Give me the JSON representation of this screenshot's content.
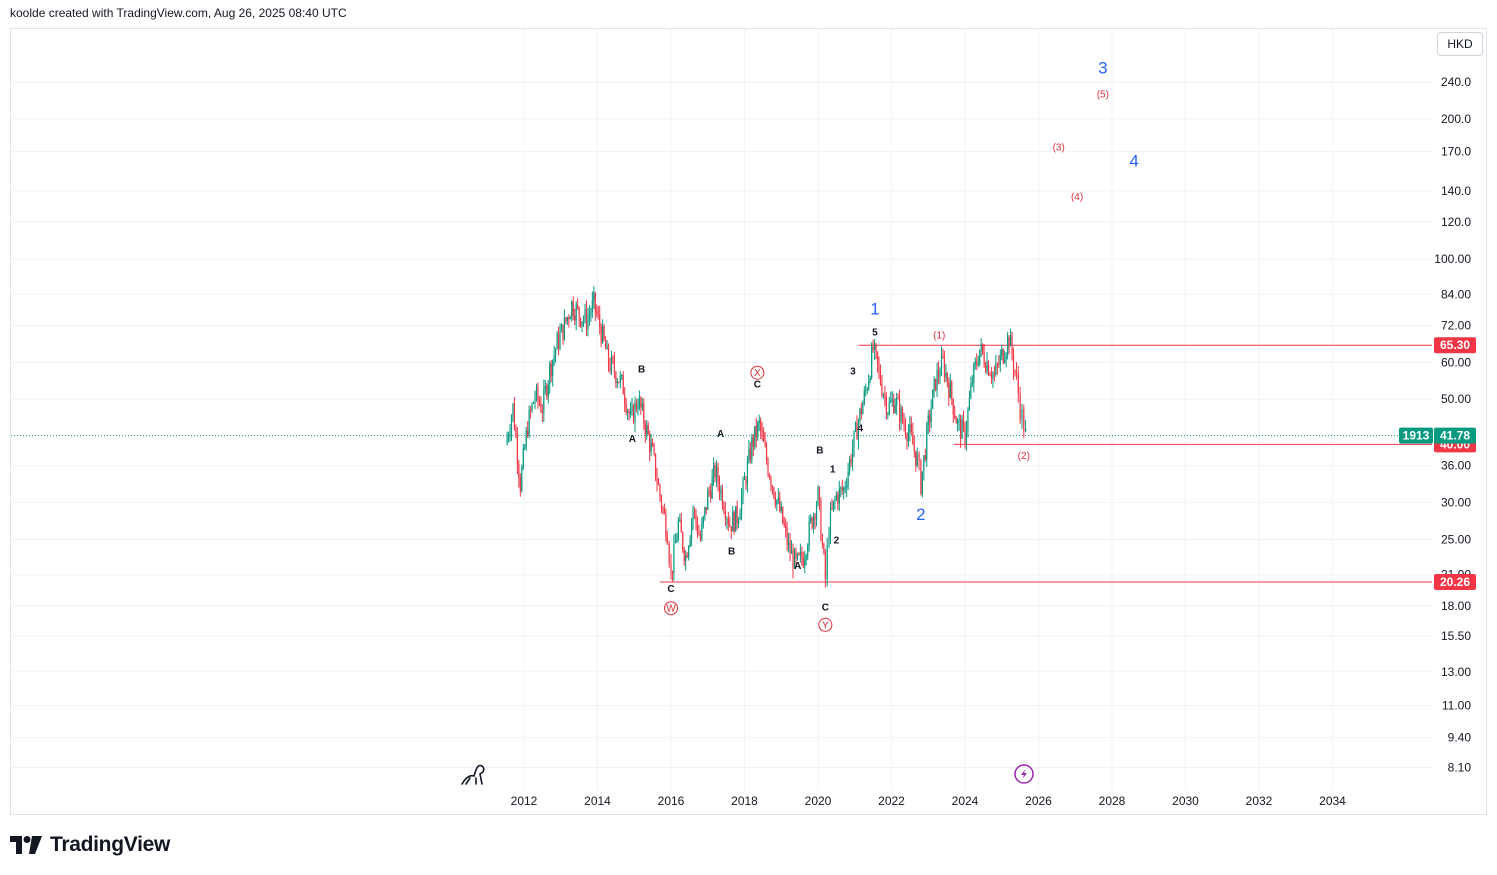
{
  "header": {
    "credit": "koolde created with TradingView.com, Aug 26, 2025 08:40 UTC"
  },
  "currency_label": "HKD",
  "brand": {
    "name": "TradingView"
  },
  "icons": {
    "dino": "dinosaur-icon",
    "flash": "lightning-icon",
    "logo": "tradingview-logo-icon"
  },
  "colors": {
    "up": "#089981",
    "down": "#f23645",
    "level": "#f23645",
    "blue_wave": "#2962ff",
    "price_tag": "#089981"
  },
  "chart_data": {
    "type": "candlestick",
    "scale": "log",
    "x_ticks": [
      "2012",
      "2014",
      "2016",
      "2018",
      "2020",
      "2022",
      "2024",
      "2026",
      "2028",
      "2030",
      "2032",
      "2034"
    ],
    "y_ticks": [
      "240.0",
      "200.0",
      "170.0",
      "140.0",
      "120.0",
      "100.00",
      "84.00",
      "72.00",
      "60.00",
      "50.00",
      "36.00",
      "30.00",
      "25.00",
      "21.00",
      "18.00",
      "15.50",
      "13.00",
      "11.00",
      "9.40",
      "8.10"
    ],
    "ylim": [
      7.5,
      290
    ],
    "horizontal_levels": [
      {
        "value": 65.3,
        "label": "65.30",
        "from_x": 2021.1
      },
      {
        "value": 40.0,
        "label": "40.00",
        "from_x": 2023.7
      },
      {
        "value": 20.26,
        "label": "20.26",
        "from_x": 2015.7
      }
    ],
    "last_price": {
      "value": 41.78,
      "label": "41.78",
      "countdown": "1913"
    },
    "price_path": [
      [
        2011.5,
        40
      ],
      [
        2011.7,
        48
      ],
      [
        2011.9,
        33
      ],
      [
        2012.1,
        44
      ],
      [
        2012.3,
        51
      ],
      [
        2012.5,
        48
      ],
      [
        2012.7,
        58
      ],
      [
        2012.9,
        66
      ],
      [
        2013.1,
        72
      ],
      [
        2013.3,
        80
      ],
      [
        2013.5,
        76
      ],
      [
        2013.7,
        74
      ],
      [
        2013.9,
        80
      ],
      [
        2014.1,
        70
      ],
      [
        2014.3,
        60
      ],
      [
        2014.5,
        57
      ],
      [
        2014.7,
        53
      ],
      [
        2014.9,
        45
      ],
      [
        2015.1,
        50
      ],
      [
        2015.3,
        44
      ],
      [
        2015.5,
        38
      ],
      [
        2015.7,
        31
      ],
      [
        2015.9,
        26
      ],
      [
        2016.0,
        21
      ],
      [
        2016.2,
        27
      ],
      [
        2016.4,
        23
      ],
      [
        2016.6,
        29
      ],
      [
        2016.8,
        25
      ],
      [
        2017.0,
        31
      ],
      [
        2017.2,
        35
      ],
      [
        2017.4,
        31
      ],
      [
        2017.6,
        27
      ],
      [
        2017.8,
        28
      ],
      [
        2018.0,
        33
      ],
      [
        2018.2,
        40
      ],
      [
        2018.4,
        44
      ],
      [
        2018.6,
        37
      ],
      [
        2018.8,
        32
      ],
      [
        2019.0,
        28
      ],
      [
        2019.2,
        24
      ],
      [
        2019.4,
        22
      ],
      [
        2019.6,
        23
      ],
      [
        2019.8,
        27
      ],
      [
        2020.0,
        31
      ],
      [
        2020.2,
        20.5
      ],
      [
        2020.3,
        27
      ],
      [
        2020.5,
        31
      ],
      [
        2020.7,
        32
      ],
      [
        2020.9,
        38
      ],
      [
        2021.1,
        45
      ],
      [
        2021.3,
        52
      ],
      [
        2021.5,
        64
      ],
      [
        2021.7,
        55
      ],
      [
        2021.9,
        48
      ],
      [
        2022.1,
        50
      ],
      [
        2022.3,
        45
      ],
      [
        2022.5,
        42
      ],
      [
        2022.7,
        37
      ],
      [
        2022.8,
        33
      ],
      [
        2023.0,
        44
      ],
      [
        2023.2,
        55
      ],
      [
        2023.4,
        60
      ],
      [
        2023.6,
        52
      ],
      [
        2023.8,
        44
      ],
      [
        2024.0,
        42
      ],
      [
        2024.2,
        55
      ],
      [
        2024.4,
        64
      ],
      [
        2024.6,
        60
      ],
      [
        2024.8,
        56
      ],
      [
        2025.0,
        62
      ],
      [
        2025.2,
        68
      ],
      [
        2025.4,
        55
      ],
      [
        2025.5,
        48
      ],
      [
        2025.6,
        44
      ],
      [
        2025.65,
        41.78
      ]
    ],
    "wave_labels": [
      {
        "text": "B",
        "x": 2015.2,
        "y": 57,
        "style": "black"
      },
      {
        "text": "A",
        "x": 2014.95,
        "y": 40.5,
        "style": "black"
      },
      {
        "text": "C",
        "x": 2016.0,
        "y": 19.3,
        "style": "black"
      },
      {
        "text": "W",
        "x": 2016.0,
        "y": 17.8,
        "style": "red-circle"
      },
      {
        "text": "A",
        "x": 2017.35,
        "y": 41.5,
        "style": "black"
      },
      {
        "text": "B",
        "x": 2017.65,
        "y": 23.2,
        "style": "black"
      },
      {
        "text": "C",
        "x": 2018.35,
        "y": 53,
        "style": "black"
      },
      {
        "text": "X",
        "x": 2018.35,
        "y": 57,
        "style": "red-circle"
      },
      {
        "text": "A",
        "x": 2019.45,
        "y": 21.6,
        "style": "black"
      },
      {
        "text": "B",
        "x": 2020.05,
        "y": 38.2,
        "style": "black"
      },
      {
        "text": "C",
        "x": 2020.2,
        "y": 17.6,
        "style": "black"
      },
      {
        "text": "Y",
        "x": 2020.2,
        "y": 16.4,
        "style": "red-circle"
      },
      {
        "text": "1",
        "x": 2020.4,
        "y": 34.8,
        "style": "black"
      },
      {
        "text": "2",
        "x": 2020.5,
        "y": 24.5,
        "style": "black"
      },
      {
        "text": "3",
        "x": 2020.95,
        "y": 56.5,
        "style": "black"
      },
      {
        "text": "4",
        "x": 2021.15,
        "y": 42.6,
        "style": "black"
      },
      {
        "text": "5",
        "x": 2021.55,
        "y": 68.5,
        "style": "black"
      },
      {
        "text": "1",
        "x": 2021.55,
        "y": 76,
        "style": "blue"
      },
      {
        "text": "2",
        "x": 2022.8,
        "y": 27.5,
        "style": "blue"
      },
      {
        "text": "(1)",
        "x": 2023.3,
        "y": 67.5,
        "style": "red"
      },
      {
        "text": "(2)",
        "x": 2025.6,
        "y": 37.2,
        "style": "red"
      },
      {
        "text": "(3)",
        "x": 2026.55,
        "y": 171,
        "style": "red"
      },
      {
        "text": "(4)",
        "x": 2027.05,
        "y": 134,
        "style": "red"
      },
      {
        "text": "(5)",
        "x": 2027.75,
        "y": 222,
        "style": "red"
      },
      {
        "text": "3",
        "x": 2027.75,
        "y": 250,
        "style": "blue"
      },
      {
        "text": "4",
        "x": 2028.6,
        "y": 158,
        "style": "blue"
      }
    ]
  }
}
